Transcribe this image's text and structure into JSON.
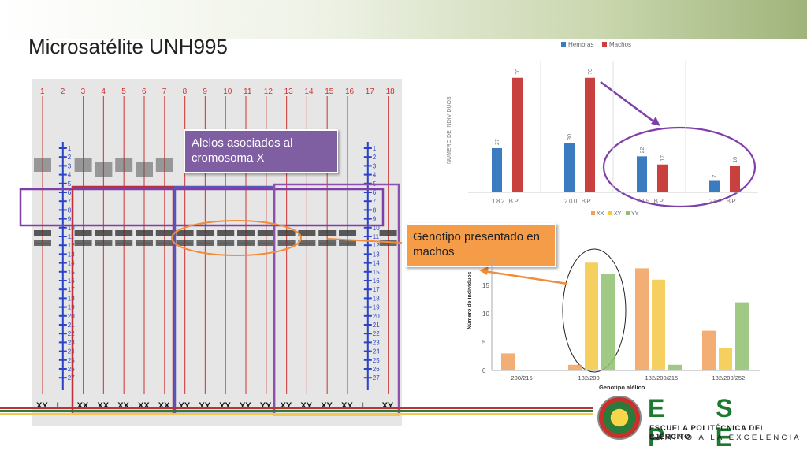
{
  "title": "Microsatélite UNH995",
  "gel": {
    "lane_numbers": [
      "1",
      "2",
      "3",
      "4",
      "5",
      "6",
      "7",
      "8",
      "9",
      "10",
      "11",
      "12",
      "13",
      "14",
      "15",
      "16",
      "17",
      "18"
    ],
    "bottom_labels": [
      "XY",
      "L",
      "XX",
      "XX",
      "XX",
      "XX",
      "XX",
      "YY",
      "YY",
      "YY",
      "YY",
      "YY",
      "XY",
      "XY",
      "XY",
      "XY",
      "L",
      "XY"
    ],
    "ladder_numbers": [
      "1",
      "2",
      "3",
      "4",
      "5",
      "6",
      "7",
      "8",
      "9",
      "10",
      "11",
      "12",
      "13",
      "14",
      "15",
      "16",
      "17",
      "18",
      "19",
      "20",
      "21",
      "22",
      "23",
      "24",
      "25",
      "26",
      "27"
    ]
  },
  "callouts": {
    "alleles": "Alelos asociados al cromosoma X",
    "genotype": "Genotipo presentado en machos"
  },
  "chart_data": [
    {
      "type": "bar",
      "categories": [
        "182 BP",
        "200 BP",
        "215 BP",
        "252 BP"
      ],
      "series": [
        {
          "name": "Hembras",
          "values": [
            27,
            30,
            22,
            7
          ],
          "color": "#3b7bbf"
        },
        {
          "name": "Machos",
          "values": [
            70,
            70,
            17,
            16
          ],
          "color": "#c9413e"
        }
      ],
      "ylabel": "NÚMERO DE INDIVIDUOS",
      "ylim": [
        0,
        80
      ],
      "legend": "top",
      "grid": false
    },
    {
      "type": "bar",
      "categories": [
        "200/215",
        "182/200",
        "182/200/215",
        "182/200/252"
      ],
      "series": [
        {
          "name": "XX",
          "values": [
            3,
            1,
            18,
            7
          ],
          "color": "#f0a05c"
        },
        {
          "name": "XY",
          "values": [
            0,
            19,
            16,
            4
          ],
          "color": "#f5c842"
        },
        {
          "name": "YY",
          "values": [
            0,
            17,
            1,
            12
          ],
          "color": "#8fc070"
        }
      ],
      "xlabel": "Genotipo  alélico",
      "ylabel": "Número de individuos",
      "yticks": [
        0,
        5,
        10,
        15
      ],
      "ylim": [
        0,
        20
      ],
      "legend": "top",
      "grid": false
    }
  ],
  "logo": {
    "name": "E S P E",
    "line1": "ESCUELA POLITÉCNICA DEL EJÉRCITO",
    "line2": "CAMINO A LA EXCELENCIA"
  }
}
